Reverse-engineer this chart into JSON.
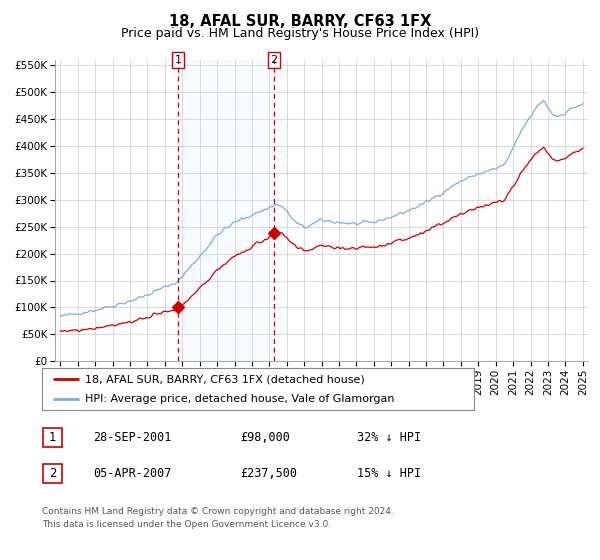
{
  "title": "18, AFAL SUR, BARRY, CF63 1FX",
  "subtitle": "Price paid vs. HM Land Registry's House Price Index (HPI)",
  "legend_label_red": "18, AFAL SUR, BARRY, CF63 1FX (detached house)",
  "legend_label_blue": "HPI: Average price, detached house, Vale of Glamorgan",
  "transaction1_date": "28-SEP-2001",
  "transaction1_price": "£98,000",
  "transaction1_hpi": "32% ↓ HPI",
  "transaction2_date": "05-APR-2007",
  "transaction2_price": "£237,500",
  "transaction2_hpi": "15% ↓ HPI",
  "footer_line1": "Contains HM Land Registry data © Crown copyright and database right 2024.",
  "footer_line2": "This data is licensed under the Open Government Licence v3.0.",
  "red_color": "#cc0000",
  "blue_color": "#7aaddb",
  "shade_color": "#ddeeff",
  "grid_color": "#cccccc",
  "ylim_min": 0,
  "ylim_max": 560000,
  "xlabel_years": [
    1995,
    1996,
    1997,
    1998,
    1999,
    2000,
    2001,
    2002,
    2003,
    2004,
    2005,
    2006,
    2007,
    2008,
    2009,
    2010,
    2011,
    2012,
    2013,
    2014,
    2015,
    2016,
    2017,
    2018,
    2019,
    2020,
    2021,
    2022,
    2023,
    2024,
    2025
  ],
  "yticks": [
    0,
    50000,
    100000,
    150000,
    200000,
    250000,
    300000,
    350000,
    400000,
    450000,
    500000,
    550000
  ],
  "ytick_labels": [
    "£0",
    "£50K",
    "£100K",
    "£150K",
    "£200K",
    "£250K",
    "£300K",
    "£350K",
    "£400K",
    "£450K",
    "£500K",
    "£550K"
  ],
  "transaction1_year": 2001.75,
  "transaction1_value": 98000,
  "transaction2_year": 2007.27,
  "transaction2_value": 237500,
  "shade_x1": 2001.75,
  "shade_x2": 2007.27,
  "xlim_min": 1994.7,
  "xlim_max": 2025.3
}
